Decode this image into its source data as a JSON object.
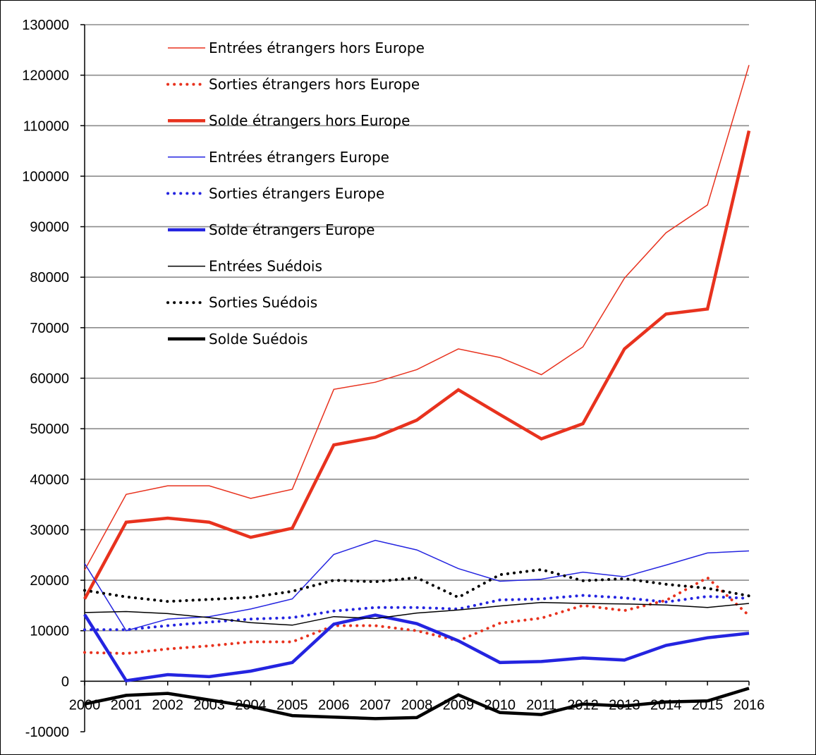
{
  "chart_data": {
    "type": "line",
    "title": "",
    "xlabel": "",
    "ylabel": "",
    "x": [
      "2000",
      "2001",
      "2002",
      "2003",
      "2004",
      "2005",
      "2006",
      "2007",
      "2008",
      "2009",
      "2010",
      "2011",
      "2012",
      "2013",
      "2014",
      "2015",
      "2016"
    ],
    "ylim": [
      -10000,
      130000
    ],
    "yticks": [
      130000,
      120000,
      110000,
      100000,
      90000,
      80000,
      70000,
      60000,
      50000,
      40000,
      30000,
      20000,
      10000,
      0,
      -10000
    ],
    "grid": "horizontal",
    "legend_position": "top-left",
    "series": [
      {
        "name": "Entrées étrangers hors Europe",
        "color": "#e8321e",
        "style": "thin-solid",
        "values": [
          22000,
          37000,
          38700,
          38700,
          36200,
          38000,
          57800,
          59200,
          61700,
          65800,
          64100,
          60700,
          66200,
          79800,
          88800,
          94300,
          122000
        ]
      },
      {
        "name": "Sorties étrangers hors Europe",
        "color": "#e8321e",
        "style": "dotted",
        "values": [
          5700,
          5500,
          6400,
          7000,
          7800,
          7800,
          11000,
          11000,
          10000,
          8000,
          11500,
          12500,
          15000,
          14000,
          16000,
          20500,
          13000
        ]
      },
      {
        "name": "Solde étrangers hors Europe",
        "color": "#e8321e",
        "style": "thick-solid",
        "values": [
          16300,
          31500,
          32300,
          31500,
          28500,
          30300,
          46800,
          48300,
          51700,
          57700,
          52800,
          48000,
          51000,
          65800,
          72700,
          73700,
          109000
        ]
      },
      {
        "name": "Entrées étrangers  Europe",
        "color": "#2424e0",
        "style": "thin-solid",
        "values": [
          23300,
          10000,
          12300,
          12800,
          14300,
          16300,
          25100,
          27900,
          26000,
          22300,
          19800,
          20200,
          21600,
          20700,
          23000,
          25400,
          25800
        ]
      },
      {
        "name": "Sorties étrangers  Europe",
        "color": "#2424e0",
        "style": "dotted",
        "values": [
          10200,
          10200,
          11000,
          11700,
          12300,
          12600,
          13900,
          14600,
          14600,
          14300,
          16100,
          16300,
          17000,
          16500,
          15700,
          16800,
          16400
        ]
      },
      {
        "name": "Solde étrangers  Europe",
        "color": "#2424e0",
        "style": "thick-solid",
        "values": [
          13200,
          100,
          1300,
          900,
          2000,
          3700,
          11300,
          13100,
          11400,
          8000,
          3700,
          3900,
          4600,
          4200,
          7100,
          8600,
          9500
        ]
      },
      {
        "name": "Entrées Suédois",
        "color": "#000000",
        "style": "thin-solid",
        "values": [
          13600,
          13800,
          13400,
          12600,
          11600,
          11100,
          12800,
          12400,
          13500,
          14100,
          14900,
          15600,
          15400,
          15300,
          15100,
          14600,
          15400
        ]
      },
      {
        "name": "Sorties Suédois",
        "color": "#000000",
        "style": "dotted",
        "values": [
          18000,
          16700,
          15800,
          16200,
          16600,
          17800,
          20000,
          19700,
          20500,
          16600,
          21100,
          22100,
          19900,
          20300,
          19200,
          18400,
          16900
        ]
      },
      {
        "name": "Solde Suédois",
        "color": "#000000",
        "style": "thick-solid",
        "values": [
          -4500,
          -2800,
          -2400,
          -3700,
          -5000,
          -6800,
          -7100,
          -7400,
          -7200,
          -2700,
          -6200,
          -6600,
          -4500,
          -4900,
          -4100,
          -3900,
          -1400
        ]
      }
    ]
  }
}
